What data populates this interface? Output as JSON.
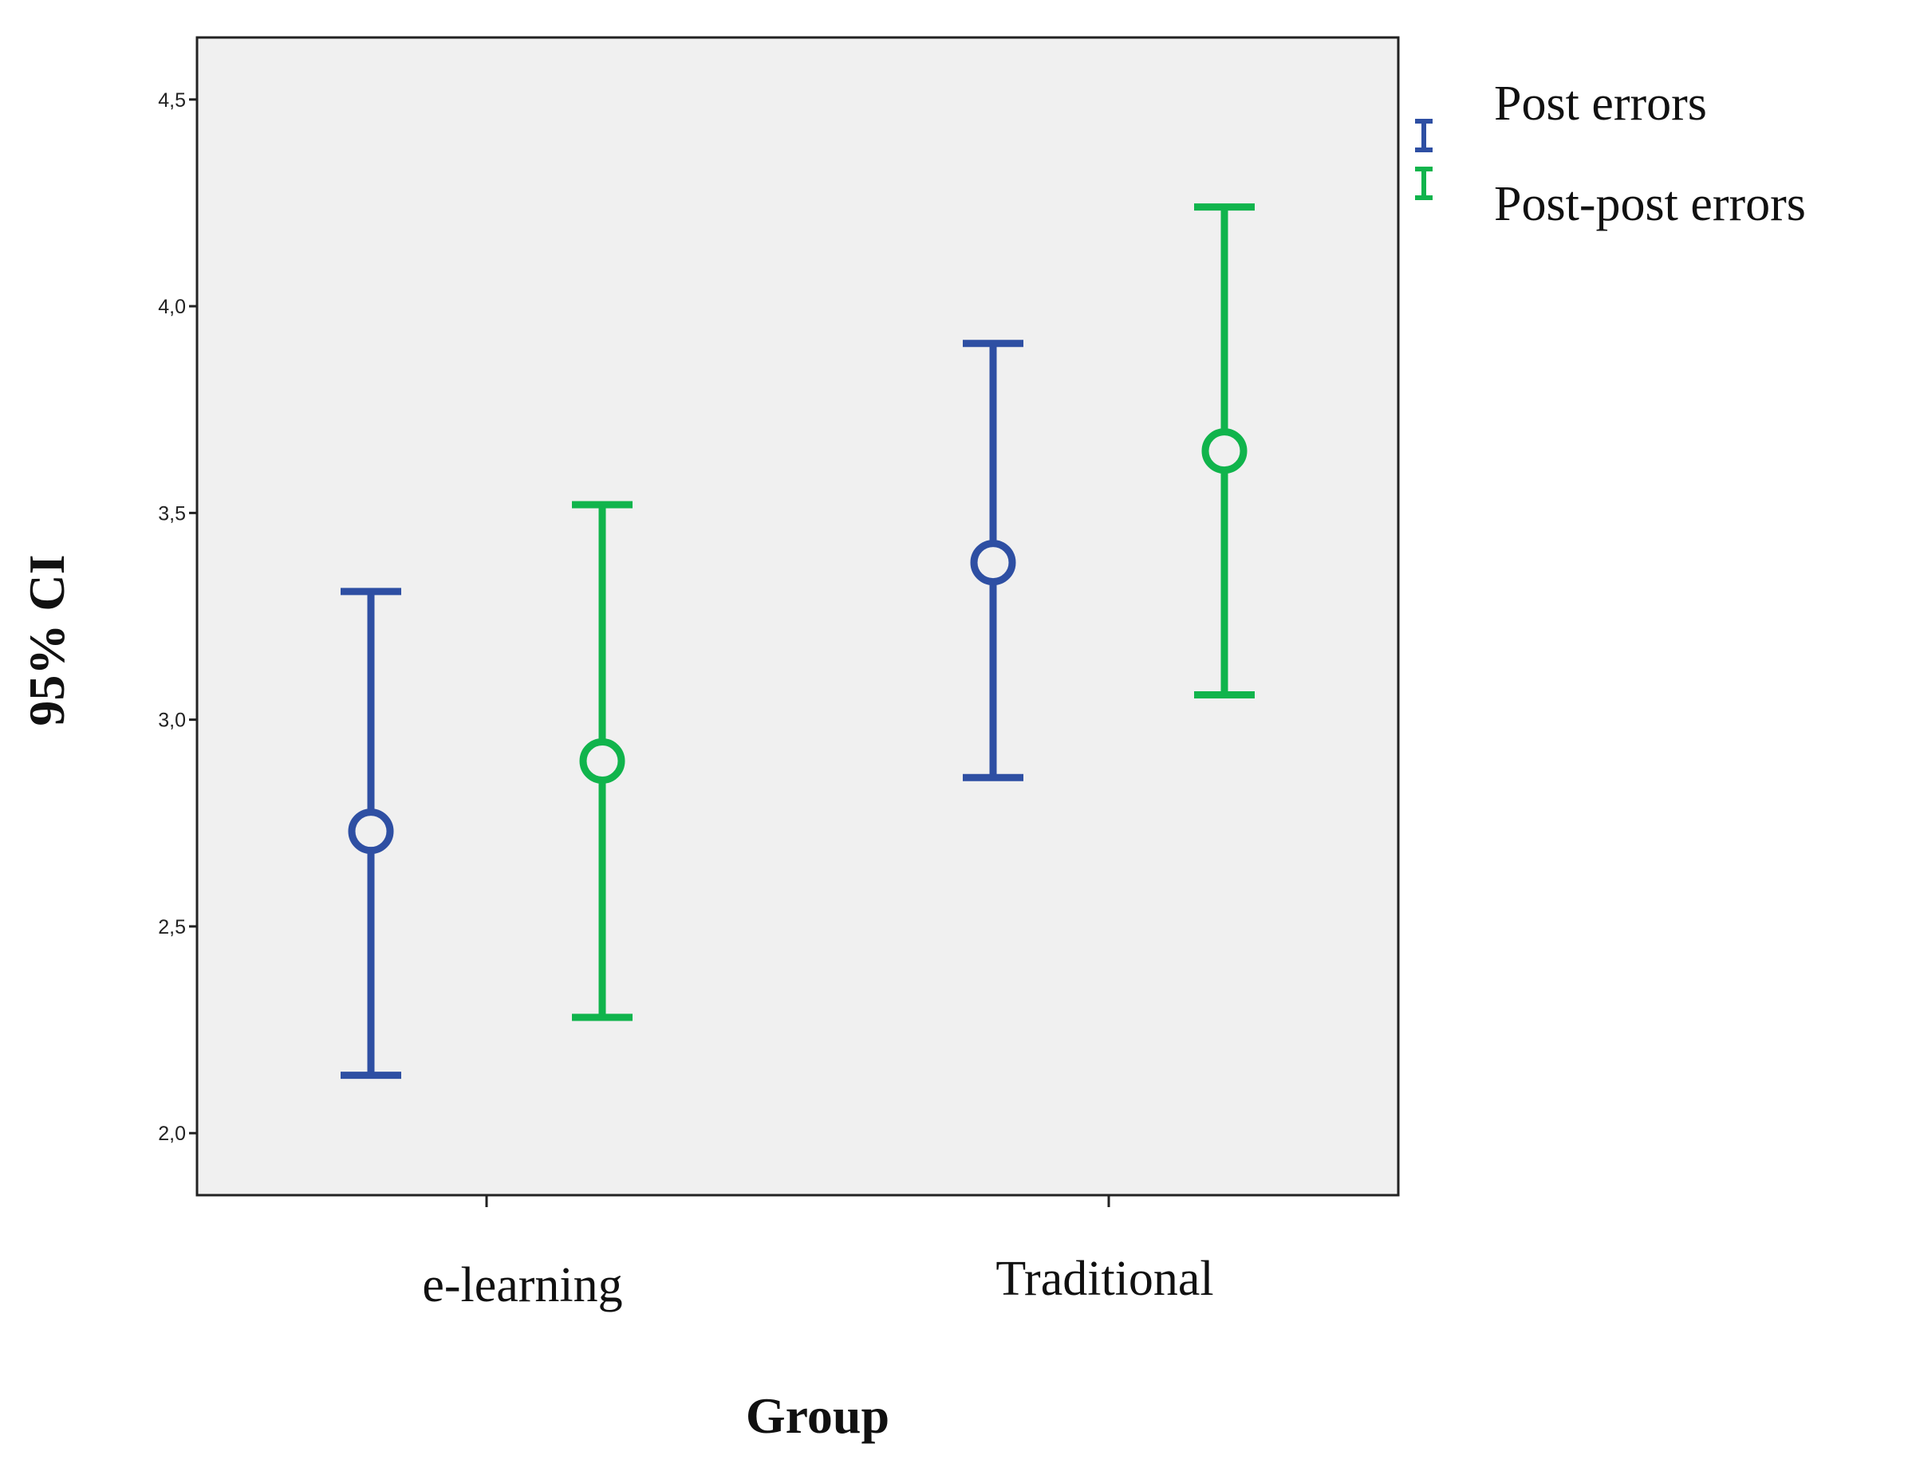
{
  "chart_data": {
    "type": "error_bar",
    "categories": [
      "e-learning",
      "Traditional"
    ],
    "xlabel": "Group",
    "ylabel": "95% CI",
    "ylim": [
      1.85,
      4.65
    ],
    "yticks": [
      "2,0",
      "2,5",
      "3,0",
      "3,5",
      "4,0",
      "4,5"
    ],
    "ytick_values": [
      2.0,
      2.5,
      3.0,
      3.5,
      4.0,
      4.5
    ],
    "grid": false,
    "legend_position": "top-right outside",
    "background_color": "#f0f0f0",
    "series": [
      {
        "name": "Post errors",
        "color": "#2e4fa3",
        "means": [
          2.73,
          3.38
        ],
        "lower": [
          2.14,
          2.86
        ],
        "upper": [
          3.31,
          3.91
        ]
      },
      {
        "name": "Post-post errors",
        "color": "#10b44c",
        "means": [
          2.9,
          3.65
        ],
        "lower": [
          2.28,
          3.06
        ],
        "upper": [
          3.52,
          4.24
        ]
      }
    ]
  }
}
